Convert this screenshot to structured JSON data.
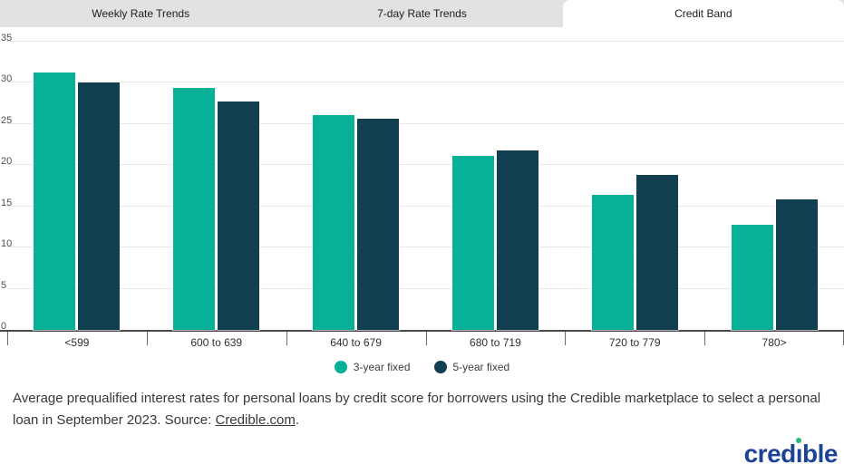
{
  "tabs": [
    {
      "label": "Weekly Rate Trends",
      "active": false
    },
    {
      "label": "7-day Rate Trends",
      "active": false
    },
    {
      "label": "Credit Band",
      "active": true
    }
  ],
  "chart_data": {
    "type": "bar",
    "title": "",
    "categories": [
      "<599",
      "600 to 639",
      "640 to 679",
      "680 to 719",
      "720 to 779",
      "780>"
    ],
    "series": [
      {
        "name": "3-year fixed",
        "color": "#06b198",
        "values": [
          31.3,
          29.4,
          26.1,
          21.1,
          16.4,
          12.8
        ]
      },
      {
        "name": "5-year fixed",
        "color": "#123f4f",
        "values": [
          30.0,
          27.7,
          25.6,
          21.8,
          18.8,
          15.8
        ]
      }
    ],
    "ylim": [
      0,
      35
    ],
    "yticks": [
      0,
      5,
      10,
      15,
      20,
      25,
      30,
      35
    ],
    "grid": true,
    "legend_position": "bottom",
    "axis_color": "#4b4b4b",
    "gridline_color": "#e8e8e8"
  },
  "caption": {
    "prefix": "Average prequalified interest rates for personal loans by credit score for borrowers using the Credible marketplace to select a personal loan in September 2023. Source: ",
    "link": "Credible.com",
    "suffix": "."
  },
  "logo": {
    "text": "credible",
    "color": "#1b4397",
    "dot_color": "#2bb673"
  }
}
